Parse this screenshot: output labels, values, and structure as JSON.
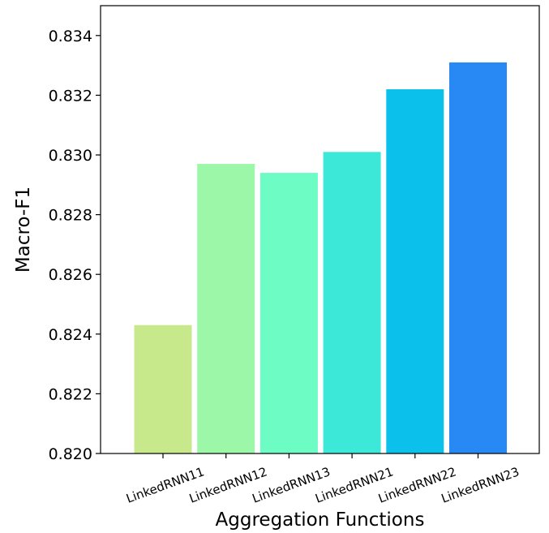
{
  "chart_data": {
    "type": "bar",
    "categories": [
      "LinkedRNN11",
      "LinkedRNN12",
      "LinkedRNN13",
      "LinkedRNN21",
      "LinkedRNN22",
      "LinkedRNN23"
    ],
    "values": [
      0.8243,
      0.8297,
      0.8294,
      0.8301,
      0.8322,
      0.8331
    ],
    "colors": [
      "#c8e88c",
      "#9cf8a8",
      "#6cfcc4",
      "#3ce8d8",
      "#0cc0ec",
      "#2888f4"
    ],
    "xlabel": "Aggregation Functions",
    "ylabel": "Macro-F1",
    "ylim": [
      0.82,
      0.835
    ],
    "yticks": [
      "0.820",
      "0.822",
      "0.824",
      "0.826",
      "0.828",
      "0.830",
      "0.832",
      "0.834"
    ],
    "grid": false,
    "legend": false
  }
}
